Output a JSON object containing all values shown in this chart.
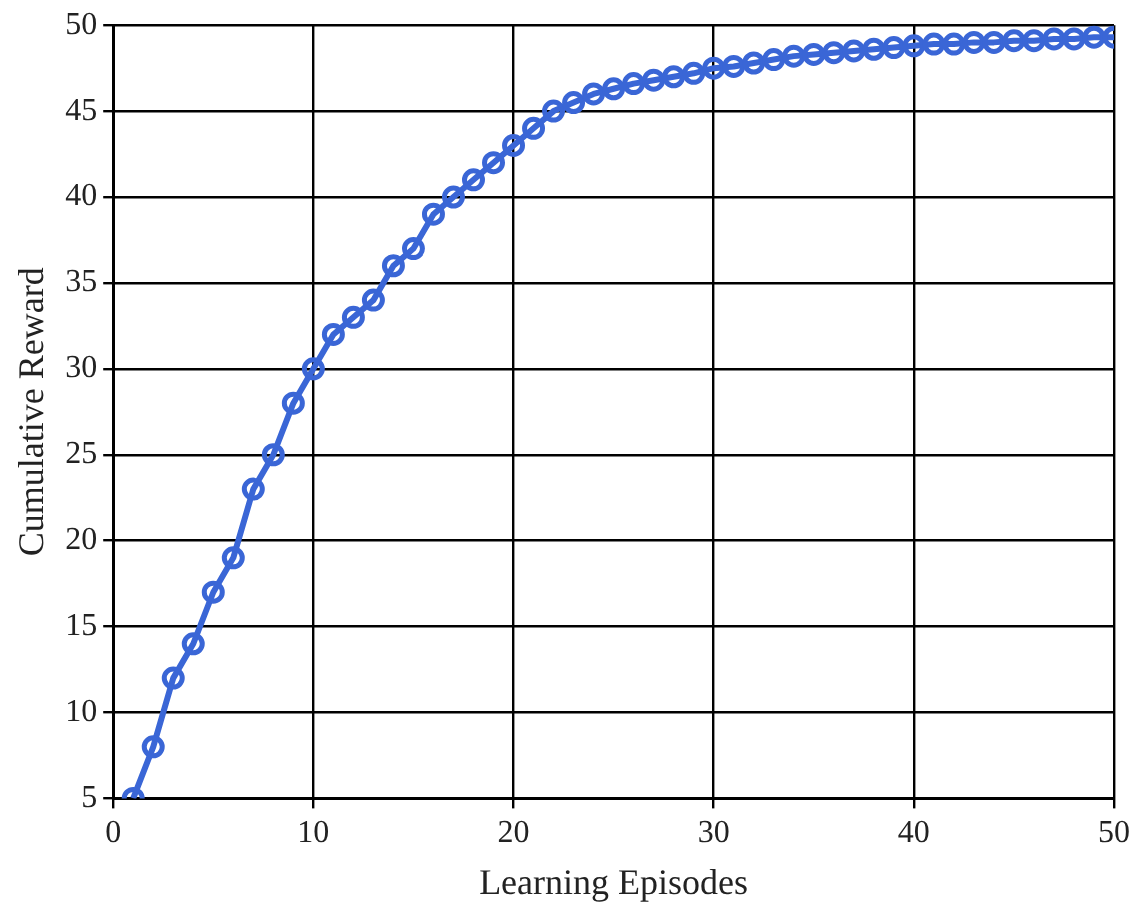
{
  "chart_data": {
    "type": "line",
    "xlabel": "Learning Episodes",
    "ylabel": "Cumulative Reward",
    "x": [
      1,
      2,
      3,
      4,
      5,
      6,
      7,
      8,
      9,
      10,
      11,
      12,
      13,
      14,
      15,
      16,
      17,
      18,
      19,
      20,
      21,
      22,
      23,
      24,
      25,
      26,
      27,
      28,
      29,
      30,
      31,
      32,
      33,
      34,
      35,
      36,
      37,
      38,
      39,
      40,
      41,
      42,
      43,
      44,
      45,
      46,
      47,
      48,
      49,
      50
    ],
    "series": [
      {
        "color": "#3a66d6",
        "values": [
          5,
          8,
          12,
          14,
          17,
          19,
          23,
          25,
          28,
          30,
          32,
          33,
          34,
          36,
          37,
          39,
          40,
          41,
          42,
          43,
          44,
          45,
          45.5,
          46,
          46.3,
          46.6,
          46.8,
          47,
          47.2,
          47.5,
          47.6,
          47.8,
          48,
          48.2,
          48.3,
          48.4,
          48.5,
          48.6,
          48.7,
          48.8,
          48.9,
          48.9,
          49,
          49,
          49.1,
          49.1,
          49.2,
          49.2,
          49.3,
          49.3
        ]
      }
    ],
    "xlim": [
      0,
      50
    ],
    "xticks": [
      0,
      10,
      20,
      30,
      40,
      50
    ],
    "ylim": [
      5,
      50
    ],
    "yticks": [
      5,
      10,
      15,
      20,
      25,
      30,
      35,
      40,
      45,
      50
    ],
    "grid": true,
    "marker": "circle",
    "line_style": "solid"
  }
}
